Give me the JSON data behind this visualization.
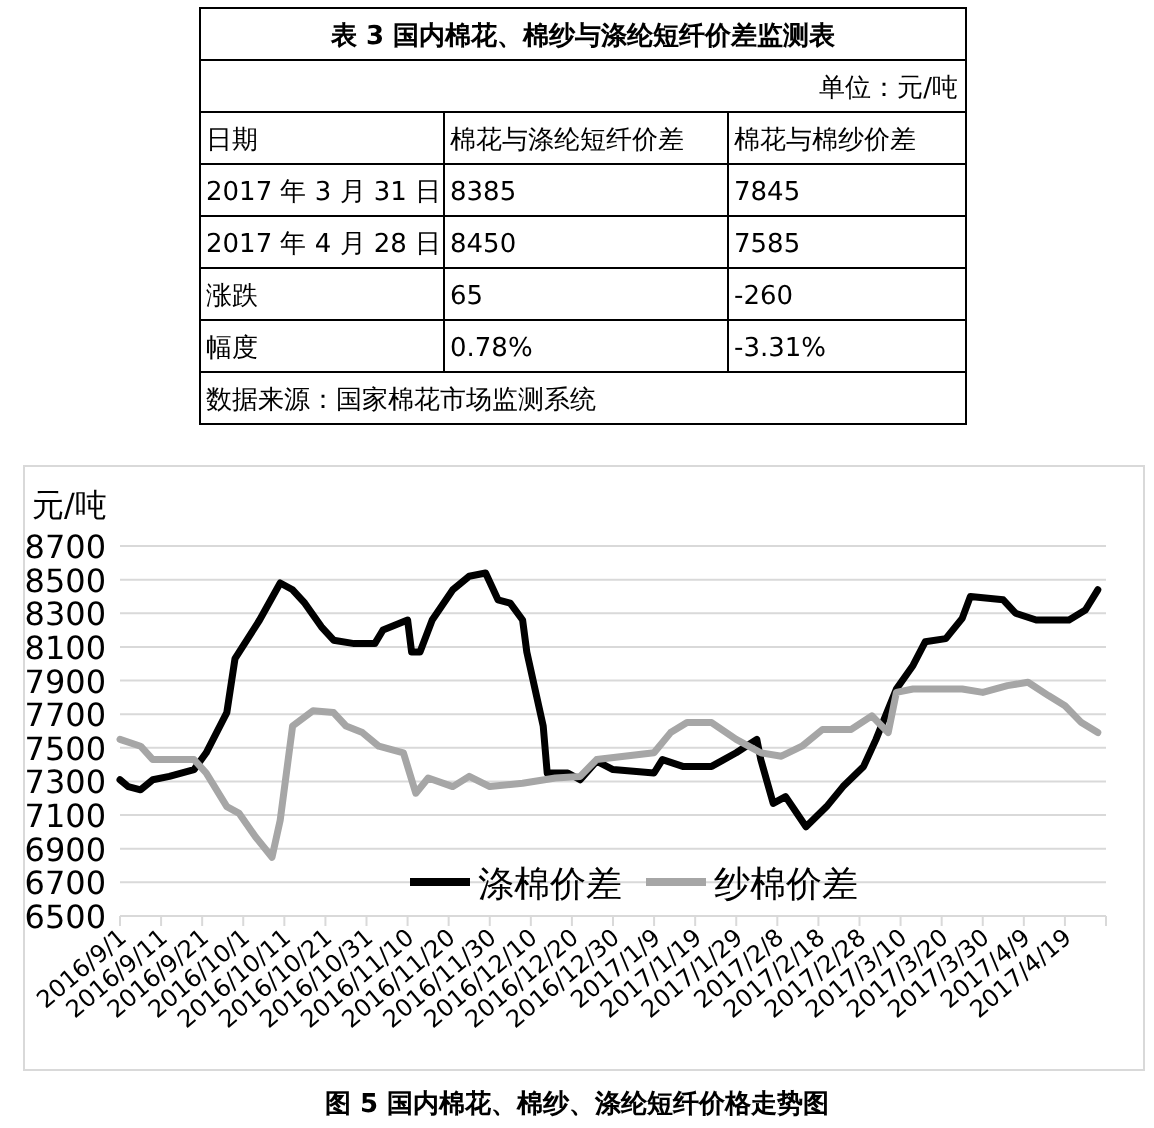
{
  "chart_data": {
    "type": "line",
    "title": "图 5 国内棉花、棉纱、涤纶短纤价格走势图",
    "ylabel": "元/吨",
    "annotations": [
      "表 3 国内棉花、棉纱与涤纶短纤价差监测表",
      "单位：元/吨",
      "日期",
      "棉花与涤纶短纤价差",
      "棉花与棉纱价差",
      "2017 年 3 月 31 日",
      "8385",
      "7845",
      "2017 年 4 月 28 日",
      "8450",
      "7585",
      "涨跌",
      "65",
      "-260",
      "幅度",
      "0.78%",
      "-3.31%",
      "数据来源：国家棉花市场监测系统"
    ],
    "xlim": [
      "2016-09-01",
      "2017-04-29"
    ],
    "xticks": [
      {
        "value": "2016-09-01",
        "label": "2016/9/1"
      },
      {
        "value": "2016-09-11",
        "label": "2016/9/11"
      },
      {
        "value": "2016-09-21",
        "label": "2016/9/21"
      },
      {
        "value": "2016-10-01",
        "label": "2016/10/1"
      },
      {
        "value": "2016-10-11",
        "label": "2016/10/11"
      },
      {
        "value": "2016-10-21",
        "label": "2016/10/21"
      },
      {
        "value": "2016-10-31",
        "label": "2016/10/31"
      },
      {
        "value": "2016-11-10",
        "label": "2016/11/10"
      },
      {
        "value": "2016-11-20",
        "label": "2016/11/20"
      },
      {
        "value": "2016-11-30",
        "label": "2016/11/30"
      },
      {
        "value": "2016-12-10",
        "label": "2016/12/10"
      },
      {
        "value": "2016-12-20",
        "label": "2016/12/20"
      },
      {
        "value": "2016-12-30",
        "label": "2016/12/30"
      },
      {
        "value": "2017-01-09",
        "label": "2017/1/9"
      },
      {
        "value": "2017-01-19",
        "label": "2017/1/19"
      },
      {
        "value": "2017-01-29",
        "label": "2017/1/29"
      },
      {
        "value": "2017-02-08",
        "label": "2017/2/8"
      },
      {
        "value": "2017-02-18",
        "label": "2017/2/18"
      },
      {
        "value": "2017-02-28",
        "label": "2017/2/28"
      },
      {
        "value": "2017-03-10",
        "label": "2017/3/10"
      },
      {
        "value": "2017-03-20",
        "label": "2017/3/20"
      },
      {
        "value": "2017-03-30",
        "label": "2017/3/30"
      },
      {
        "value": "2017-04-09",
        "label": "2017/4/9"
      },
      {
        "value": "2017-04-19",
        "label": "2017/4/19"
      }
    ],
    "ylim": [
      6500,
      8700
    ],
    "yticks": [
      6500,
      6700,
      6900,
      7100,
      7300,
      7500,
      7700,
      7900,
      8100,
      8300,
      8500,
      8700
    ],
    "grid": "y",
    "legend": "bottom",
    "marker": "none",
    "line_style": "solid",
    "series": [
      {
        "name": "涤棉价差",
        "color": "#000000",
        "x": [
          "2016-09-01",
          "2016-09-03",
          "2016-09-06",
          "2016-09-09",
          "2016-09-13",
          "2016-09-19",
          "2016-09-22",
          "2016-09-27",
          "2016-09-29",
          "2016-10-05",
          "2016-10-10",
          "2016-10-13",
          "2016-10-16",
          "2016-10-20",
          "2016-10-23",
          "2016-10-28",
          "2016-11-02",
          "2016-11-04",
          "2016-11-10",
          "2016-11-11",
          "2016-11-13",
          "2016-11-16",
          "2016-11-21",
          "2016-11-25",
          "2016-11-29",
          "2016-12-02",
          "2016-12-05",
          "2016-12-08",
          "2016-12-09",
          "2016-12-13",
          "2016-12-14",
          "2016-12-19",
          "2016-12-22",
          "2016-12-26",
          "2016-12-30",
          "2017-01-09",
          "2017-01-11",
          "2017-01-16",
          "2017-01-23",
          "2017-01-29",
          "2017-02-03",
          "2017-02-04",
          "2017-02-07",
          "2017-02-10",
          "2017-02-15",
          "2017-02-20",
          "2017-02-24",
          "2017-03-01",
          "2017-03-04",
          "2017-03-09",
          "2017-03-13",
          "2017-03-16",
          "2017-03-21",
          "2017-03-25",
          "2017-03-27",
          "2017-04-04",
          "2017-04-07",
          "2017-04-12",
          "2017-04-20",
          "2017-04-24",
          "2017-04-27"
        ],
        "values": [
          7310,
          7270,
          7250,
          7310,
          7330,
          7370,
          7470,
          7710,
          8030,
          8260,
          8480,
          8440,
          8360,
          8220,
          8140,
          8120,
          8120,
          8200,
          8260,
          8070,
          8070,
          8260,
          8440,
          8520,
          8540,
          8380,
          8360,
          8260,
          8070,
          7630,
          7350,
          7350,
          7310,
          7420,
          7370,
          7350,
          7430,
          7390,
          7390,
          7470,
          7550,
          7430,
          7170,
          7210,
          7030,
          7150,
          7270,
          7390,
          7550,
          7850,
          7990,
          8130,
          8150,
          8270,
          8400,
          8380,
          8300,
          8260,
          8260,
          8320,
          8440
        ]
      },
      {
        "name": "纱棉价差",
        "color": "#a6a6a6",
        "x": [
          "2016-09-01",
          "2016-09-06",
          "2016-09-09",
          "2016-09-19",
          "2016-09-22",
          "2016-09-27",
          "2016-09-30",
          "2016-10-04",
          "2016-10-08",
          "2016-10-10",
          "2016-10-13",
          "2016-10-18",
          "2016-10-23",
          "2016-10-26",
          "2016-10-30",
          "2016-11-03",
          "2016-11-09",
          "2016-11-12",
          "2016-11-15",
          "2016-11-21",
          "2016-11-25",
          "2016-11-30",
          "2016-12-08",
          "2016-12-16",
          "2016-12-22",
          "2016-12-26",
          "2017-01-09",
          "2017-01-13",
          "2017-01-17",
          "2017-01-23",
          "2017-01-29",
          "2017-02-04",
          "2017-02-09",
          "2017-02-14",
          "2017-02-19",
          "2017-02-26",
          "2017-03-03",
          "2017-03-07",
          "2017-03-09",
          "2017-03-13",
          "2017-03-25",
          "2017-03-30",
          "2017-04-05",
          "2017-04-10",
          "2017-04-15",
          "2017-04-19",
          "2017-04-23",
          "2017-04-27"
        ],
        "values": [
          7550,
          7510,
          7430,
          7430,
          7350,
          7150,
          7110,
          6970,
          6850,
          7070,
          7630,
          7720,
          7710,
          7630,
          7590,
          7510,
          7470,
          7230,
          7320,
          7270,
          7330,
          7270,
          7290,
          7320,
          7330,
          7430,
          7470,
          7590,
          7650,
          7650,
          7550,
          7470,
          7450,
          7510,
          7610,
          7610,
          7690,
          7590,
          7830,
          7850,
          7850,
          7830,
          7870,
          7890,
          7810,
          7750,
          7650,
          7590
        ]
      }
    ]
  }
}
